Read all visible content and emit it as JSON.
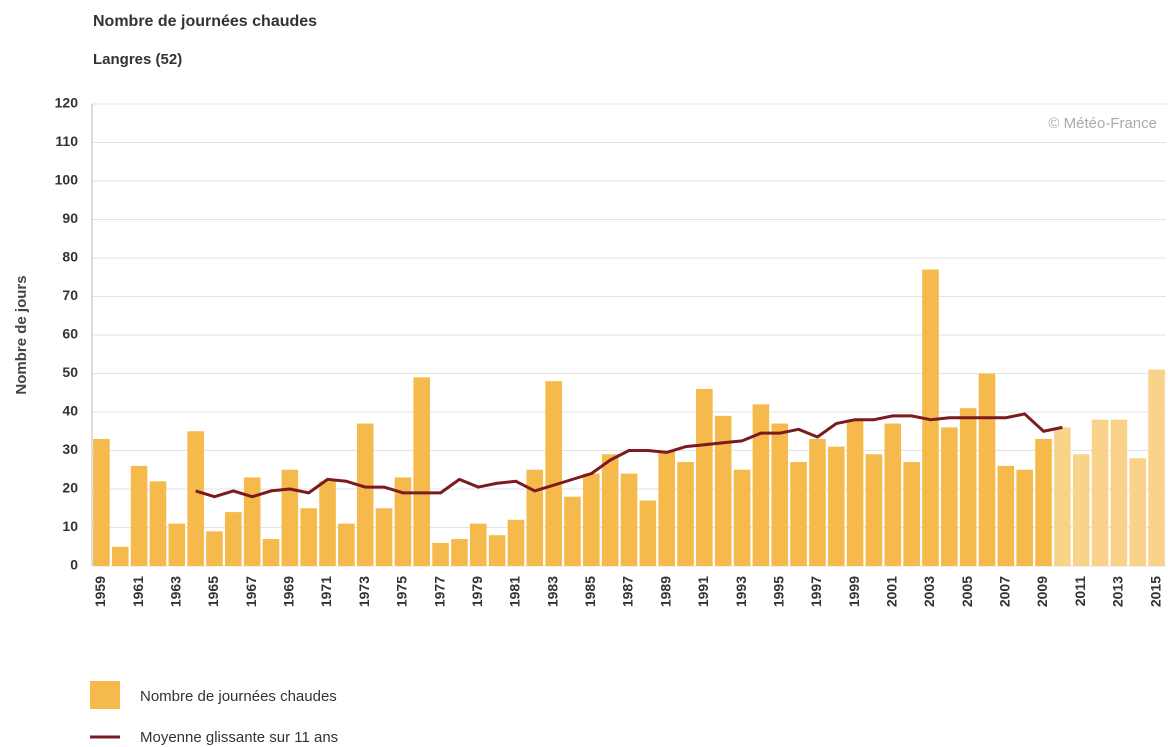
{
  "chart_data": {
    "type": "bar",
    "title": "Nombre de journées chaudes",
    "subtitle": "Langres (52)",
    "y_label": "Nombre de jours",
    "watermark": "© Météo-France",
    "categories": [
      "1959",
      null,
      "1961",
      null,
      "1963",
      null,
      "1965",
      null,
      "1967",
      null,
      "1969",
      null,
      "1971",
      null,
      "1973",
      null,
      "1975",
      null,
      "1977",
      null,
      "1979",
      null,
      "1981",
      null,
      "1983",
      null,
      "1985",
      null,
      "1987",
      null,
      "1989",
      null,
      "1991",
      null,
      "1993",
      null,
      "1995",
      null,
      "1997",
      null,
      "1999",
      null,
      "2001",
      null,
      "2003",
      null,
      "2005",
      null,
      "2007",
      null,
      "2009",
      null,
      "2011",
      null,
      "2013",
      null,
      "2015"
    ],
    "series": [
      {
        "name": "Nombre de journées chaudes",
        "type": "bar",
        "color": "#f6b94c",
        "colors": [
          "#f6b94c",
          "#f6b94c",
          "#f6b94c",
          "#f6b94c",
          "#f6b94c",
          "#f6b94c",
          "#f6b94c",
          "#f6b94c",
          "#f6b94c",
          "#f6b94c",
          "#f6b94c",
          "#f6b94c",
          "#f6b94c",
          "#f6b94c",
          "#f6b94c",
          "#f6b94c",
          "#f6b94c",
          "#f6b94c",
          "#f6b94c",
          "#f6b94c",
          "#f6b94c",
          "#f6b94c",
          "#f6b94c",
          "#f6b94c",
          "#f6b94c",
          "#f6b94c",
          "#f6b94c",
          "#f6b94c",
          "#f6b94c",
          "#f6b94c",
          "#f6b94c",
          "#f6b94c",
          "#f6b94c",
          "#f6b94c",
          "#f6b94c",
          "#f6b94c",
          "#f6b94c",
          "#f6b94c",
          "#f6b94c",
          "#f6b94c",
          "#f6b94c",
          "#f6b94c",
          "#f6b94c",
          "#f6b94c",
          "#f6b94c",
          "#f6b94c",
          "#f6b94c",
          "#f6b94c",
          "#f6b94c",
          "#f6b94c",
          "#f6b94c",
          "#fad38a",
          "#fad38a",
          "#fad38a",
          "#fad38a",
          "#fad38a",
          "#fad38a"
        ],
        "values": [
          33,
          5,
          26,
          22,
          11,
          35,
          9,
          14,
          23,
          7,
          25,
          15,
          22,
          11,
          37,
          15,
          23,
          49,
          6,
          7,
          11,
          8,
          12,
          25,
          48,
          18,
          24,
          29,
          24,
          17,
          30,
          27,
          46,
          39,
          25,
          42,
          37,
          27,
          33,
          31,
          38,
          29,
          37,
          27,
          77,
          36,
          41,
          50,
          26,
          25,
          33,
          36,
          29,
          38,
          38,
          28,
          51
        ]
      },
      {
        "name": "Moyenne glissante sur 11 ans",
        "type": "line",
        "color": "#7b1a1f",
        "values": [
          null,
          null,
          null,
          null,
          null,
          19.5,
          18,
          19.5,
          18,
          19.5,
          20,
          19,
          22.5,
          22,
          20.5,
          20.5,
          19,
          19,
          19,
          22.5,
          20.5,
          21.5,
          22,
          19.5,
          21,
          22.5,
          24,
          27.5,
          30,
          30,
          29.5,
          31,
          31.5,
          32,
          32.5,
          34.5,
          34.5,
          35.5,
          33.5,
          37,
          38,
          38,
          39,
          39,
          38,
          38.5,
          38.5,
          38.5,
          38.5,
          39.5,
          35,
          36,
          null,
          null,
          null,
          null,
          null
        ]
      }
    ],
    "ylim": [
      0,
      120
    ],
    "yticks": [
      0,
      10,
      20,
      30,
      40,
      50,
      60,
      70,
      80,
      90,
      100,
      110,
      120
    ],
    "grid": true
  }
}
